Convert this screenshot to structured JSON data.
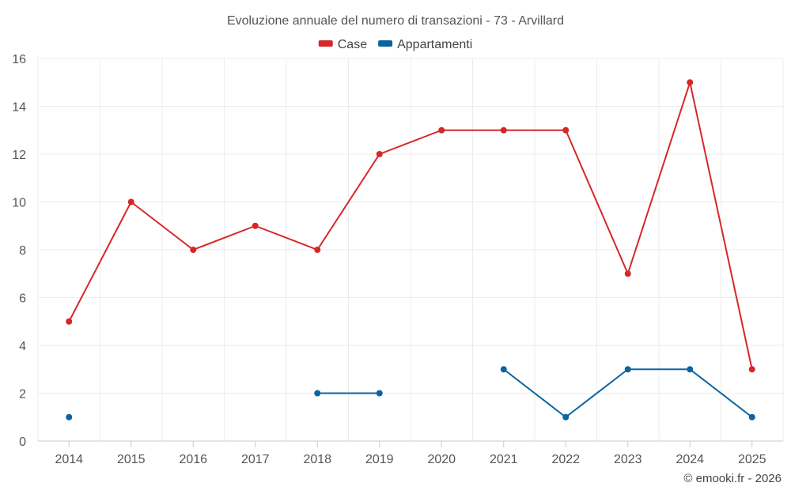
{
  "chart_data": {
    "type": "line",
    "title": "Evoluzione annuale del numero di transazioni - 73 - Arvillard",
    "categories": [
      "2014",
      "2015",
      "2016",
      "2017",
      "2018",
      "2019",
      "2020",
      "2021",
      "2022",
      "2023",
      "2024",
      "2025"
    ],
    "series": [
      {
        "name": "Case",
        "color": "#d62728",
        "values": [
          5,
          10,
          8,
          9,
          8,
          12,
          13,
          13,
          13,
          7,
          15,
          3
        ]
      },
      {
        "name": "Appartamenti",
        "color": "#0b64a0",
        "values": [
          1,
          null,
          null,
          null,
          2,
          2,
          null,
          3,
          1,
          3,
          3,
          1
        ]
      }
    ],
    "ylim": [
      0,
      16
    ],
    "yticks": [
      0,
      2,
      4,
      6,
      8,
      10,
      12,
      14,
      16
    ],
    "xlabel": "",
    "ylabel": "",
    "grid": true,
    "legend_position": "top-center"
  },
  "credit": "© emooki.fr - 2026"
}
